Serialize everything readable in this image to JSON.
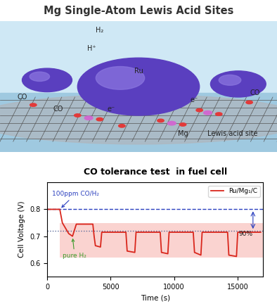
{
  "header": {
    "title": "Mg Single-Atom Lewis Acid Sites"
  },
  "illustration": {
    "labels": [
      "H₂",
      "H⁺",
      "CO",
      "CO",
      "CO",
      "Ru",
      "e⁻",
      "e⁻",
      "Mg",
      "Lewis acid site"
    ]
  },
  "chart_data": {
    "type": "line",
    "title": "CO tolerance test  in fuel cell",
    "x_label": "Time (s)",
    "y_label": "Cell Voltage (V)",
    "series": [
      {
        "name": "Ru/Mg₁/C",
        "color": "#d9261c",
        "x": [
          0,
          1000,
          1200,
          1700,
          2000,
          2300,
          3600,
          3700,
          3800,
          4200,
          4300,
          6200,
          6300,
          6900,
          7000,
          8900,
          9000,
          9500,
          9600,
          11500,
          11600,
          12100,
          12200,
          14200,
          14300,
          14900,
          15000,
          16800
        ],
        "values": [
          0.8,
          0.8,
          0.75,
          0.71,
          0.7,
          0.745,
          0.745,
          0.7,
          0.665,
          0.66,
          0.715,
          0.715,
          0.645,
          0.64,
          0.715,
          0.715,
          0.64,
          0.635,
          0.715,
          0.715,
          0.64,
          0.63,
          0.715,
          0.715,
          0.63,
          0.625,
          0.715,
          0.715
        ]
      }
    ],
    "hlines": [
      {
        "value": 0.8,
        "color": "#2a3fbf",
        "line_style": "dashed"
      },
      {
        "value": 0.72,
        "color": "#5a6a9a",
        "line_style": "dotted"
      }
    ],
    "band": {
      "x": [
        1000,
        17000
      ],
      "y": [
        0.62,
        0.75
      ],
      "color": "#f7b6b2"
    },
    "annotations": [
      {
        "text": "100ppm CO/H₂",
        "x": 1000,
        "y": 0.8,
        "color": "#2a3fbf"
      },
      {
        "text": "pure H₂",
        "x": 2000,
        "y": 0.7,
        "color": "#3c9a2a"
      },
      {
        "text": "90%",
        "x": 16200,
        "y": 0.72,
        "color": "#222222"
      }
    ],
    "xlim": [
      0,
      17000
    ],
    "xticks": [
      0,
      5000,
      10000,
      15000
    ],
    "ylim": [
      0.55,
      0.9
    ],
    "yticks": [
      0.6,
      0.7,
      0.8
    ],
    "legend": "upper right",
    "grid": false
  }
}
